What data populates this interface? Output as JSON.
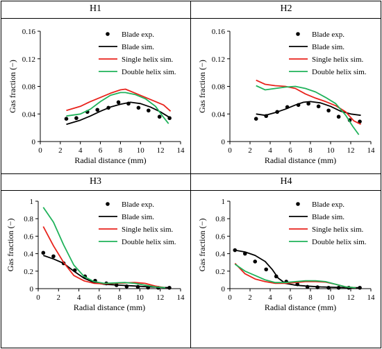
{
  "panels": [
    {
      "title": "H1"
    },
    {
      "title": "H2"
    },
    {
      "title": "H3"
    },
    {
      "title": "H4"
    }
  ],
  "chart_data": [
    {
      "type": "line",
      "title": "H1",
      "xlabel": "Radial distance (mm)",
      "ylabel": "Gas fraction (−)",
      "xlim": [
        0,
        14
      ],
      "ylim": [
        0,
        0.16
      ],
      "xticks": [
        0,
        2,
        4,
        6,
        8,
        10,
        12,
        14
      ],
      "yticks": [
        0,
        0.04,
        0.08,
        0.12,
        0.16
      ],
      "ytick_labels": [
        "0",
        "0.04",
        "0.08",
        "0.12",
        "0.16"
      ],
      "legend": "top-right",
      "series": [
        {
          "name": "Blade exp.",
          "kind": "scatter",
          "color": "#000000",
          "points": [
            [
              2.6,
              0.033
            ],
            [
              3.6,
              0.034
            ],
            [
              4.7,
              0.043
            ],
            [
              5.7,
              0.046
            ],
            [
              6.8,
              0.049
            ],
            [
              7.8,
              0.057
            ],
            [
              8.8,
              0.055
            ],
            [
              9.8,
              0.049
            ],
            [
              10.8,
              0.045
            ],
            [
              11.9,
              0.036
            ],
            [
              12.9,
              0.034
            ]
          ]
        },
        {
          "name": "Blade sim.",
          "kind": "line",
          "color": "#000000",
          "points": [
            [
              2.6,
              0.025
            ],
            [
              4,
              0.031
            ],
            [
              5,
              0.037
            ],
            [
              6,
              0.044
            ],
            [
              7,
              0.05
            ],
            [
              8,
              0.054
            ],
            [
              9,
              0.057
            ],
            [
              10,
              0.055
            ],
            [
              11,
              0.05
            ],
            [
              12,
              0.043
            ],
            [
              13,
              0.034
            ]
          ]
        },
        {
          "name": "Single helix sim.",
          "kind": "line",
          "color": "#e8221b",
          "points": [
            [
              2.6,
              0.045
            ],
            [
              4,
              0.051
            ],
            [
              5,
              0.058
            ],
            [
              6,
              0.064
            ],
            [
              7,
              0.07
            ],
            [
              8,
              0.075
            ],
            [
              8.5,
              0.076
            ],
            [
              9.5,
              0.07
            ],
            [
              10.5,
              0.064
            ],
            [
              11.5,
              0.058
            ],
            [
              12.3,
              0.053
            ],
            [
              13,
              0.044
            ]
          ]
        },
        {
          "name": "Double helix sim.",
          "kind": "line",
          "color": "#1fb25a",
          "points": [
            [
              2.6,
              0.037
            ],
            [
              4,
              0.04
            ],
            [
              5,
              0.047
            ],
            [
              6,
              0.058
            ],
            [
              7,
              0.067
            ],
            [
              8,
              0.071
            ],
            [
              8.5,
              0.071
            ],
            [
              9.5,
              0.068
            ],
            [
              10.5,
              0.062
            ],
            [
              11.5,
              0.051
            ],
            [
              12.2,
              0.037
            ],
            [
              12.8,
              0.026
            ]
          ]
        }
      ]
    },
    {
      "type": "line",
      "title": "H2",
      "xlabel": "Radial distance (mm)",
      "ylabel": "Gas fraction (−)",
      "xlim": [
        0,
        14
      ],
      "ylim": [
        0,
        0.16
      ],
      "xticks": [
        0,
        2,
        4,
        6,
        8,
        10,
        12,
        14
      ],
      "yticks": [
        0,
        0.04,
        0.08,
        0.12,
        0.16
      ],
      "ytick_labels": [
        "0",
        "0.04",
        "0.08",
        "0.12",
        "0.16"
      ],
      "legend": "top-right",
      "series": [
        {
          "name": "Blade exp.",
          "kind": "scatter",
          "color": "#000000",
          "points": [
            [
              2.6,
              0.033
            ],
            [
              3.6,
              0.037
            ],
            [
              4.7,
              0.043
            ],
            [
              5.7,
              0.05
            ],
            [
              6.8,
              0.053
            ],
            [
              7.8,
              0.055
            ],
            [
              8.8,
              0.051
            ],
            [
              9.8,
              0.045
            ],
            [
              10.8,
              0.036
            ],
            [
              11.9,
              0.031
            ],
            [
              12.9,
              0.029
            ]
          ]
        },
        {
          "name": "Blade sim.",
          "kind": "line",
          "color": "#000000",
          "points": [
            [
              2.6,
              0.04
            ],
            [
              3.5,
              0.038
            ],
            [
              4.5,
              0.042
            ],
            [
              5.5,
              0.047
            ],
            [
              6.5,
              0.053
            ],
            [
              7.3,
              0.057
            ],
            [
              8,
              0.058
            ],
            [
              9,
              0.056
            ],
            [
              10,
              0.051
            ],
            [
              11,
              0.044
            ],
            [
              12,
              0.04
            ],
            [
              13,
              0.038
            ]
          ]
        },
        {
          "name": "Single helix sim.",
          "kind": "line",
          "color": "#e8221b",
          "points": [
            [
              2.6,
              0.089
            ],
            [
              3.5,
              0.083
            ],
            [
              4.5,
              0.081
            ],
            [
              5.5,
              0.08
            ],
            [
              6.5,
              0.077
            ],
            [
              7.5,
              0.069
            ],
            [
              8.5,
              0.063
            ],
            [
              9.5,
              0.058
            ],
            [
              10.5,
              0.052
            ],
            [
              11.5,
              0.043
            ],
            [
              12.3,
              0.03
            ],
            [
              13,
              0.025
            ]
          ]
        },
        {
          "name": "Double helix sim.",
          "kind": "line",
          "color": "#1fb25a",
          "points": [
            [
              2.6,
              0.081
            ],
            [
              3.5,
              0.075
            ],
            [
              4.5,
              0.077
            ],
            [
              5.5,
              0.079
            ],
            [
              6.5,
              0.08
            ],
            [
              7.5,
              0.077
            ],
            [
              8.5,
              0.072
            ],
            [
              9.5,
              0.064
            ],
            [
              10.5,
              0.055
            ],
            [
              11.5,
              0.038
            ],
            [
              12.2,
              0.022
            ],
            [
              12.8,
              0.01
            ]
          ]
        }
      ]
    },
    {
      "type": "line",
      "title": "H3",
      "xlabel": "Radial distance (mm)",
      "ylabel": "Gas fraction (−)",
      "xlim": [
        0,
        14
      ],
      "ylim": [
        0,
        1
      ],
      "xticks": [
        0,
        2,
        4,
        6,
        8,
        10,
        12,
        14
      ],
      "yticks": [
        0,
        0.2,
        0.4,
        0.6,
        0.8,
        1
      ],
      "ytick_labels": [
        "0",
        "0.2",
        "0.4",
        "0.6",
        "0.8",
        "1"
      ],
      "legend": "top-right",
      "series": [
        {
          "name": "Blade exp.",
          "kind": "scatter",
          "color": "#000000",
          "points": [
            [
              0.5,
              0.41
            ],
            [
              1.5,
              0.37
            ],
            [
              2.5,
              0.29
            ],
            [
              3.6,
              0.21
            ],
            [
              4.6,
              0.14
            ],
            [
              5.6,
              0.09
            ],
            [
              6.7,
              0.06
            ],
            [
              7.7,
              0.04
            ],
            [
              8.7,
              0.025
            ],
            [
              9.8,
              0.02
            ],
            [
              10.8,
              0.012
            ],
            [
              11.8,
              0.01
            ],
            [
              12.9,
              0.01
            ]
          ]
        },
        {
          "name": "Blade sim.",
          "kind": "line",
          "color": "#000000",
          "points": [
            [
              0.5,
              0.38
            ],
            [
              1.5,
              0.34
            ],
            [
              2.5,
              0.29
            ],
            [
              3.5,
              0.2
            ],
            [
              4.5,
              0.12
            ],
            [
              5.5,
              0.07
            ],
            [
              6.5,
              0.05
            ],
            [
              8,
              0.04
            ],
            [
              9.5,
              0.03
            ],
            [
              11,
              0.02
            ],
            [
              12,
              0.015
            ],
            [
              13,
              0.01
            ]
          ]
        },
        {
          "name": "Single helix sim.",
          "kind": "line",
          "color": "#e8221b",
          "points": [
            [
              0.5,
              0.71
            ],
            [
              1.5,
              0.49
            ],
            [
              2.5,
              0.3
            ],
            [
              3.5,
              0.15
            ],
            [
              4.5,
              0.09
            ],
            [
              5.5,
              0.06
            ],
            [
              6.5,
              0.055
            ],
            [
              7.5,
              0.06
            ],
            [
              8.5,
              0.065
            ],
            [
              9.5,
              0.07
            ],
            [
              10.5,
              0.06
            ],
            [
              11.5,
              0.03
            ],
            [
              12.5,
              0.01
            ]
          ]
        },
        {
          "name": "Double helix sim.",
          "kind": "line",
          "color": "#1fb25a",
          "points": [
            [
              0.5,
              0.93
            ],
            [
              1.5,
              0.76
            ],
            [
              2.5,
              0.5
            ],
            [
              3.5,
              0.27
            ],
            [
              4.5,
              0.14
            ],
            [
              5.5,
              0.08
            ],
            [
              6.5,
              0.06
            ],
            [
              7.5,
              0.065
            ],
            [
              8.5,
              0.07
            ],
            [
              9.5,
              0.06
            ],
            [
              10.5,
              0.04
            ],
            [
              11.5,
              0.02
            ],
            [
              12.5,
              0.01
            ]
          ]
        }
      ]
    },
    {
      "type": "line",
      "title": "H4",
      "xlabel": "Radial distance (mm)",
      "ylabel": "Gas fraction (−)",
      "xlim": [
        0,
        14
      ],
      "ylim": [
        0,
        1
      ],
      "xticks": [
        0,
        2,
        4,
        6,
        8,
        10,
        12,
        14
      ],
      "yticks": [
        0,
        0.2,
        0.4,
        0.6,
        0.8,
        1
      ],
      "ytick_labels": [
        "0",
        "0.2",
        "0.4",
        "0.6",
        "0.8",
        "1"
      ],
      "legend": "top-right",
      "series": [
        {
          "name": "Blade exp.",
          "kind": "scatter",
          "color": "#000000",
          "points": [
            [
              0.5,
              0.44
            ],
            [
              1.5,
              0.4
            ],
            [
              2.5,
              0.31
            ],
            [
              3.6,
              0.22
            ],
            [
              4.6,
              0.14
            ],
            [
              5.6,
              0.08
            ],
            [
              6.7,
              0.05
            ],
            [
              7.7,
              0.02
            ],
            [
              8.7,
              0.015
            ],
            [
              9.8,
              0.01
            ],
            [
              10.8,
              0.01
            ],
            [
              11.8,
              0.01
            ],
            [
              12.9,
              0.01
            ]
          ]
        },
        {
          "name": "Blade sim.",
          "kind": "line",
          "color": "#000000",
          "points": [
            [
              0.5,
              0.44
            ],
            [
              1.5,
              0.42
            ],
            [
              2.5,
              0.38
            ],
            [
              3.5,
              0.31
            ],
            [
              4.2,
              0.22
            ],
            [
              4.8,
              0.12
            ],
            [
              5.5,
              0.06
            ],
            [
              6.5,
              0.04
            ],
            [
              7.5,
              0.03
            ],
            [
              9,
              0.02
            ],
            [
              10.5,
              0.015
            ],
            [
              12,
              0.01
            ],
            [
              13,
              0.01
            ]
          ]
        },
        {
          "name": "Single helix sim.",
          "kind": "line",
          "color": "#e8221b",
          "points": [
            [
              0.5,
              0.29
            ],
            [
              1.5,
              0.17
            ],
            [
              2.5,
              0.11
            ],
            [
              3.5,
              0.08
            ],
            [
              4.5,
              0.06
            ],
            [
              5.5,
              0.06
            ],
            [
              6.5,
              0.07
            ],
            [
              7.5,
              0.08
            ],
            [
              8.5,
              0.08
            ],
            [
              9.5,
              0.075
            ],
            [
              10.5,
              0.05
            ],
            [
              11.5,
              0.02
            ],
            [
              12.5,
              0.01
            ]
          ]
        },
        {
          "name": "Double helix sim.",
          "kind": "line",
          "color": "#1fb25a",
          "points": [
            [
              0.5,
              0.28
            ],
            [
              1.5,
              0.2
            ],
            [
              2.5,
              0.15
            ],
            [
              3.5,
              0.1
            ],
            [
              4.5,
              0.07
            ],
            [
              5.5,
              0.07
            ],
            [
              6.5,
              0.08
            ],
            [
              7.5,
              0.09
            ],
            [
              8.5,
              0.09
            ],
            [
              9.5,
              0.08
            ],
            [
              10.5,
              0.05
            ],
            [
              11.5,
              0.02
            ],
            [
              12.5,
              0.01
            ]
          ]
        }
      ]
    }
  ]
}
